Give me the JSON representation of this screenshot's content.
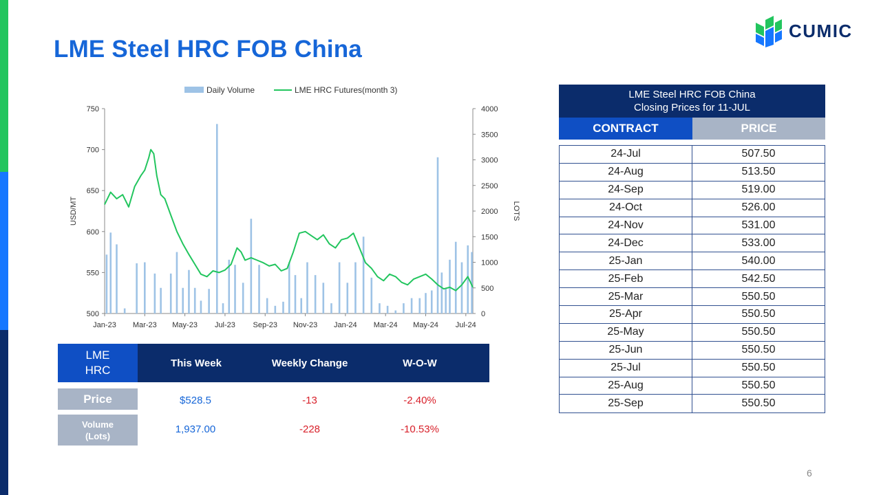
{
  "title": "LME Steel HRC FOB China",
  "logo": {
    "text": "CUMIC"
  },
  "page_number": "6",
  "colors": {
    "title": "#1666d8",
    "navy": "#0b2c6b",
    "accent_blue": "#0f4fc4",
    "line_green": "#22c55e",
    "bar_blue": "#9ec3e6",
    "grey": "#a8b4c6",
    "negative": "#d8202a"
  },
  "chart_data": {
    "type": "bar+line",
    "legend": [
      "Daily Volume",
      "LME HRC Futures(month 3)"
    ],
    "legend_position": "top",
    "ylabel_left": "USD/MT",
    "ylabel_right": "LOTS",
    "y_left_lim": [
      500,
      750
    ],
    "y_left_ticks": [
      "500",
      "550",
      "600",
      "650",
      "700",
      "750"
    ],
    "y_right_lim": [
      0,
      4000
    ],
    "y_right_ticks": [
      "0",
      "500",
      "1000",
      "1500",
      "2000",
      "2500",
      "3000",
      "3500",
      "4000"
    ],
    "x_ticks": [
      "Jan-23",
      "Mar-23",
      "May-23",
      "Jul-23",
      "Sep-23",
      "Nov-23",
      "Jan-24",
      "Mar-24",
      "May-24",
      "Jul-24"
    ],
    "x_range_months": [
      0,
      18.35
    ],
    "line_series": {
      "name": "LME HRC Futures(month 3)",
      "x_months": [
        0,
        0.3,
        0.6,
        0.9,
        1.2,
        1.5,
        1.8,
        2.0,
        2.2,
        2.3,
        2.45,
        2.6,
        2.8,
        3.0,
        3.3,
        3.6,
        3.9,
        4.2,
        4.5,
        4.8,
        5.1,
        5.4,
        5.7,
        6.0,
        6.3,
        6.6,
        6.8,
        7.0,
        7.3,
        7.6,
        7.9,
        8.2,
        8.5,
        8.8,
        9.1,
        9.4,
        9.7,
        10.0,
        10.3,
        10.6,
        10.9,
        11.2,
        11.5,
        11.8,
        12.1,
        12.4,
        12.7,
        13.0,
        13.3,
        13.6,
        13.9,
        14.2,
        14.5,
        14.8,
        15.1,
        15.4,
        15.7,
        16.0,
        16.3,
        16.6,
        16.9,
        17.2,
        17.5,
        17.8,
        18.1,
        18.35
      ],
      "values": [
        633,
        648,
        640,
        645,
        630,
        655,
        668,
        675,
        690,
        700,
        695,
        668,
        645,
        640,
        620,
        600,
        585,
        572,
        560,
        548,
        545,
        552,
        550,
        553,
        560,
        580,
        575,
        565,
        568,
        565,
        562,
        558,
        560,
        552,
        555,
        575,
        598,
        600,
        595,
        590,
        596,
        585,
        580,
        590,
        592,
        598,
        580,
        562,
        555,
        545,
        540,
        548,
        545,
        538,
        535,
        542,
        545,
        548,
        542,
        535,
        530,
        532,
        528,
        535,
        545,
        532
      ]
    },
    "bar_series": {
      "name": "Daily Volume",
      "x_months": [
        0.1,
        0.3,
        0.6,
        1.0,
        1.6,
        2.0,
        2.5,
        2.8,
        3.3,
        3.6,
        3.9,
        4.2,
        4.5,
        4.8,
        5.2,
        5.6,
        5.9,
        6.2,
        6.5,
        6.9,
        7.3,
        7.7,
        8.1,
        8.5,
        8.9,
        9.2,
        9.5,
        9.8,
        10.1,
        10.5,
        10.9,
        11.3,
        11.7,
        12.1,
        12.5,
        12.9,
        13.3,
        13.7,
        14.1,
        14.5,
        14.9,
        15.3,
        15.7,
        16.0,
        16.3,
        16.6,
        16.8,
        17.0,
        17.2,
        17.5,
        17.8,
        18.1,
        18.3
      ],
      "values": [
        1150,
        1580,
        1350,
        100,
        980,
        1000,
        780,
        500,
        780,
        1200,
        500,
        850,
        500,
        250,
        480,
        3700,
        200,
        1050,
        950,
        600,
        1850,
        950,
        300,
        150,
        230,
        1000,
        750,
        300,
        1000,
        750,
        600,
        200,
        1000,
        600,
        1000,
        1500,
        700,
        200,
        150,
        60,
        200,
        300,
        300,
        400,
        450,
        3050,
        800,
        500,
        1050,
        1400,
        1000,
        1330,
        1200
      ]
    }
  },
  "summary": {
    "corner_label": "LME HRC",
    "headers": [
      "This Week",
      "Weekly Change",
      "W-O-W"
    ],
    "rows": [
      {
        "label": "Price",
        "this_week": "$528.5",
        "weekly_change": "-13",
        "wow": "-2.40%"
      },
      {
        "label": "Volume (Lots)",
        "this_week": "1,937.00",
        "weekly_change": "-228",
        "wow": "-10.53%"
      }
    ]
  },
  "prices": {
    "title_line1": "LME Steel HRC FOB China",
    "title_line2": "Closing Prices for 11-JUL",
    "header_contract": "CONTRACT",
    "header_price": "PRICE",
    "rows": [
      {
        "contract": "24-Jul",
        "price": "507.50"
      },
      {
        "contract": "24-Aug",
        "price": "513.50"
      },
      {
        "contract": "24-Sep",
        "price": "519.00"
      },
      {
        "contract": "24-Oct",
        "price": "526.00"
      },
      {
        "contract": "24-Nov",
        "price": "531.00"
      },
      {
        "contract": "24-Dec",
        "price": "533.00"
      },
      {
        "contract": "25-Jan",
        "price": "540.00"
      },
      {
        "contract": "25-Feb",
        "price": "542.50"
      },
      {
        "contract": "25-Mar",
        "price": "550.50"
      },
      {
        "contract": "25-Apr",
        "price": "550.50"
      },
      {
        "contract": "25-May",
        "price": "550.50"
      },
      {
        "contract": "25-Jun",
        "price": "550.50"
      },
      {
        "contract": "25-Jul",
        "price": "550.50"
      },
      {
        "contract": "25-Aug",
        "price": "550.50"
      },
      {
        "contract": "25-Sep",
        "price": "550.50"
      }
    ]
  }
}
